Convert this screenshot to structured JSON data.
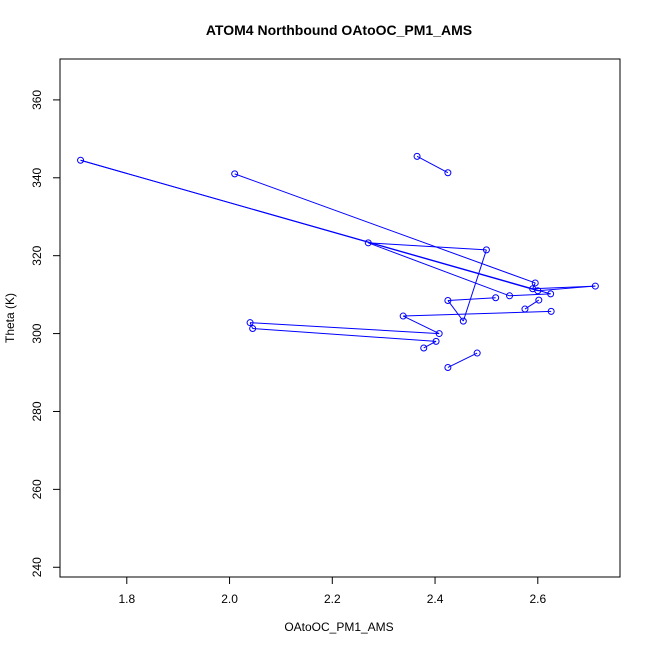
{
  "chart_data": {
    "type": "line",
    "title": "ATOM4 Northbound OAtoOC_PM1_AMS",
    "xlabel": "OAtoOC_PM1_AMS",
    "ylabel": "Theta (K)",
    "xlim": [
      1.67,
      2.76
    ],
    "ylim": [
      237.5,
      370.5
    ],
    "xticks": [
      1.8,
      2.0,
      2.2,
      2.4,
      2.6
    ],
    "xtick_labels": [
      "1.8",
      "2.0",
      "2.2",
      "2.4",
      "2.6"
    ],
    "yticks": [
      240,
      260,
      280,
      300,
      320,
      340,
      360
    ],
    "ytick_labels": [
      "240",
      "260",
      "280",
      "300",
      "320",
      "340",
      "360"
    ],
    "grid": false,
    "series_color": "#0000ff",
    "points": [
      {
        "x": 2.425,
        "y": 341.3
      },
      {
        "x": 2.365,
        "y": 345.5
      },
      {
        "x": 2.01,
        "y": 341.0
      },
      {
        "x": 2.595,
        "y": 313.0
      },
      {
        "x": 2.59,
        "y": 311.5
      },
      {
        "x": 2.712,
        "y": 312.2
      },
      {
        "x": 2.6,
        "y": 311.0
      },
      {
        "x": 1.71,
        "y": 344.5
      },
      {
        "x": 2.625,
        "y": 310.2
      },
      {
        "x": 2.545,
        "y": 309.7
      },
      {
        "x": 2.27,
        "y": 323.3
      },
      {
        "x": 2.5,
        "y": 321.5
      },
      {
        "x": 2.455,
        "y": 303.2
      },
      {
        "x": 2.425,
        "y": 308.5
      },
      {
        "x": 2.518,
        "y": 309.2
      },
      {
        "x": 2.602,
        "y": 308.6
      },
      {
        "x": 2.575,
        "y": 306.3
      },
      {
        "x": 2.626,
        "y": 305.7
      },
      {
        "x": 2.338,
        "y": 304.5
      },
      {
        "x": 2.408,
        "y": 300.0
      },
      {
        "x": 2.04,
        "y": 302.8
      },
      {
        "x": 2.045,
        "y": 301.3
      },
      {
        "x": 2.402,
        "y": 298.0
      },
      {
        "x": 2.378,
        "y": 296.3
      },
      {
        "x": 2.482,
        "y": 295.0
      },
      {
        "x": 2.425,
        "y": 291.3
      }
    ],
    "line_segments": [
      [
        0,
        1
      ],
      [
        2,
        3
      ],
      [
        3,
        4
      ],
      [
        4,
        5
      ],
      [
        5,
        6
      ],
      [
        6,
        7
      ],
      [
        7,
        8
      ],
      [
        8,
        9
      ],
      [
        9,
        10
      ],
      [
        10,
        11
      ],
      [
        11,
        12
      ],
      [
        12,
        13
      ],
      [
        13,
        14
      ],
      [
        15,
        16
      ],
      [
        17,
        18
      ],
      [
        18,
        19
      ],
      [
        19,
        20
      ],
      [
        20,
        21
      ],
      [
        21,
        22
      ],
      [
        22,
        23
      ],
      [
        24,
        25
      ]
    ]
  }
}
